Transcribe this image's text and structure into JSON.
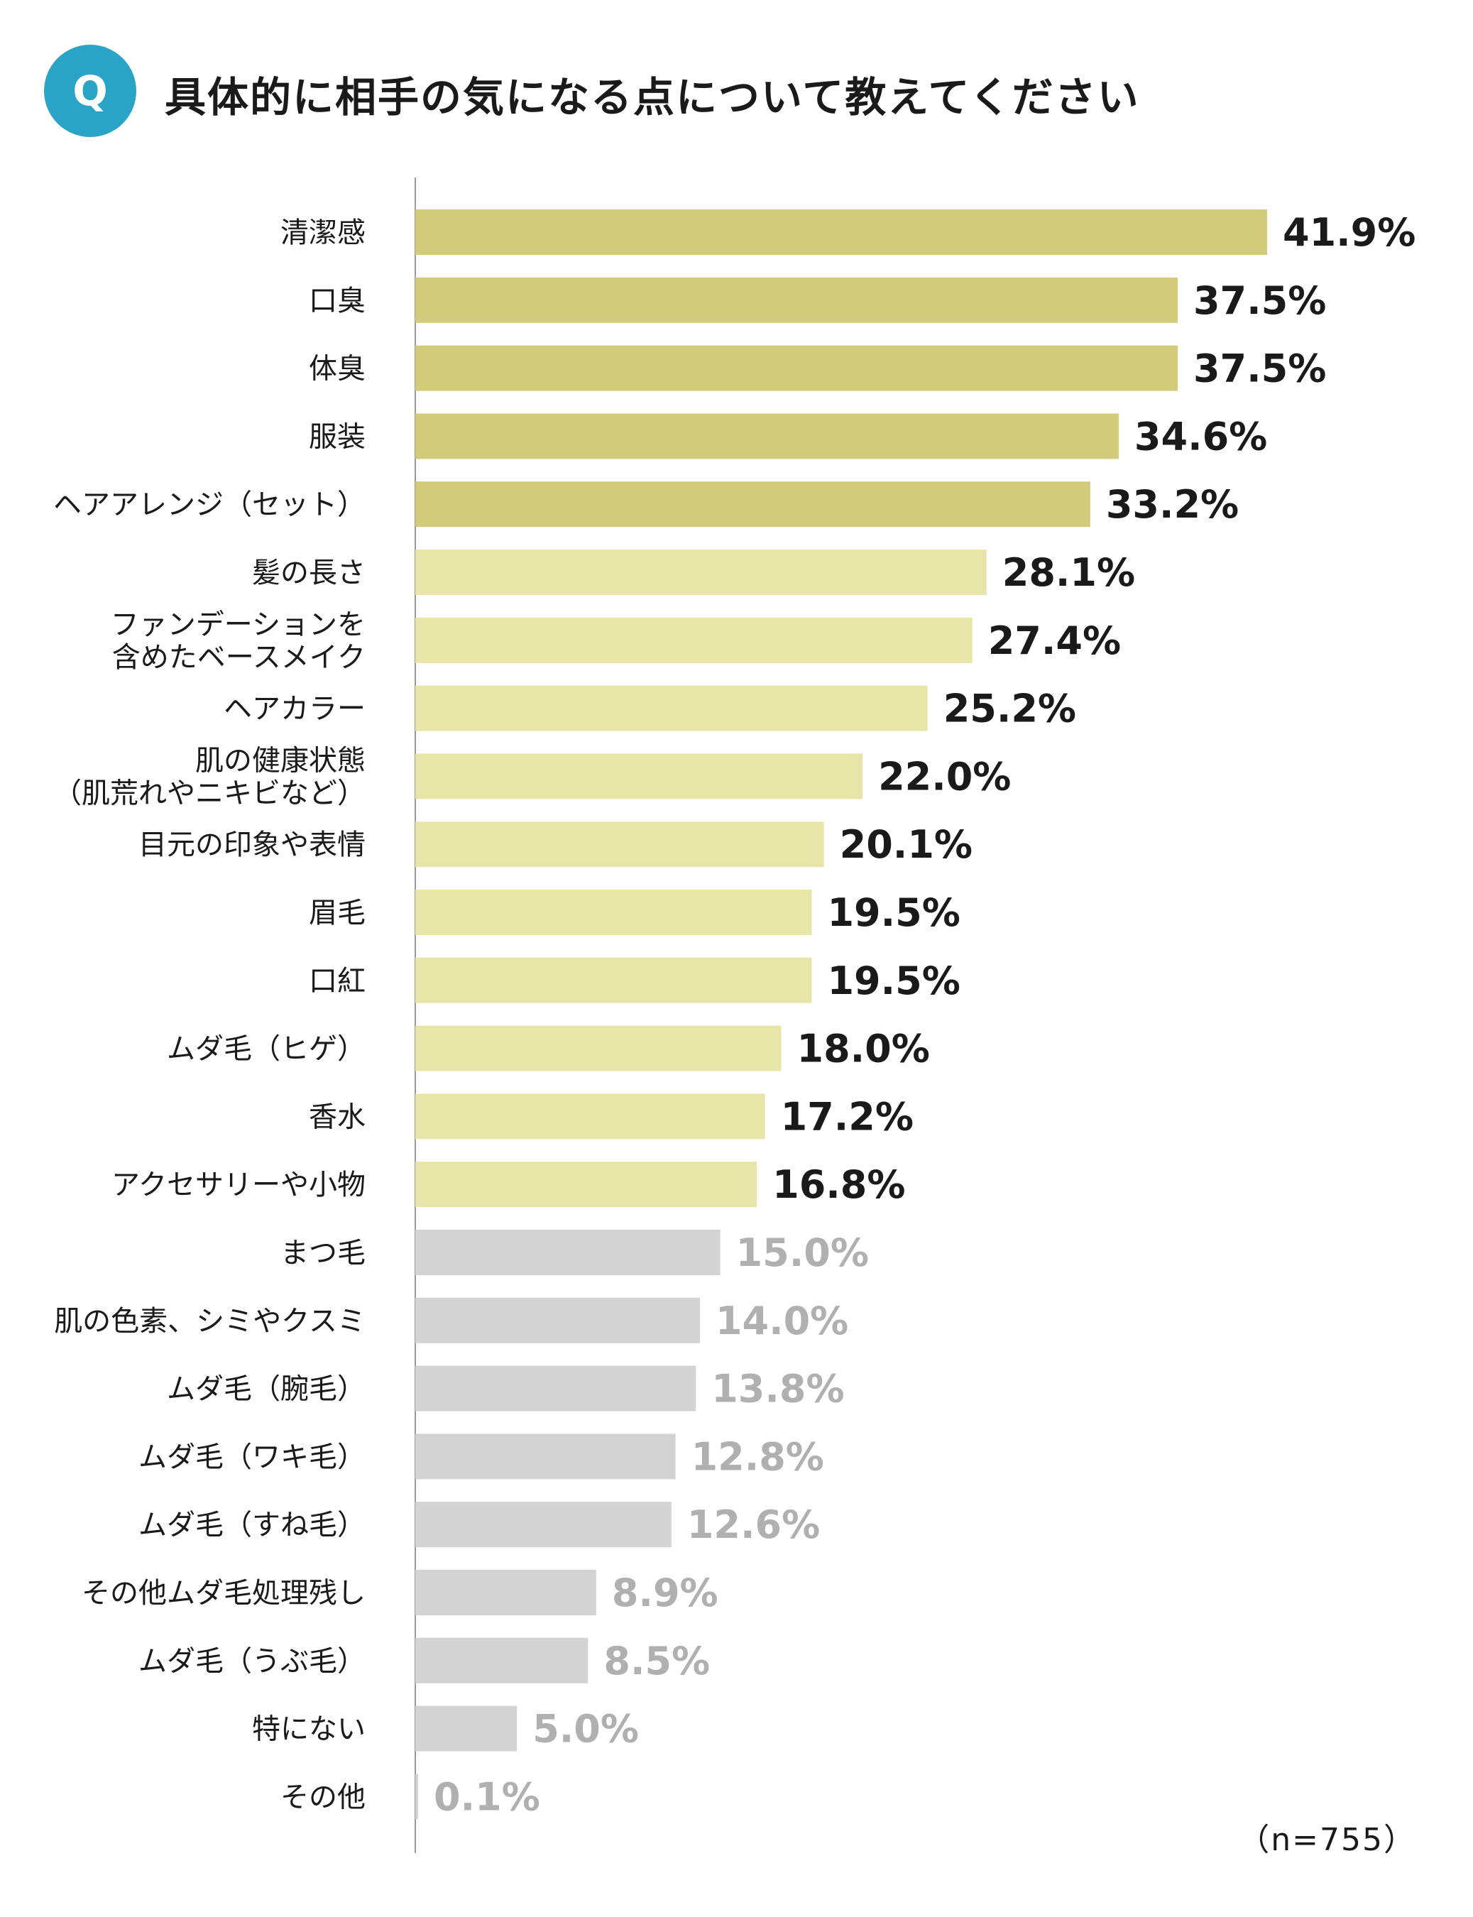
{
  "question": {
    "badge": "Q",
    "title": "具体的に相手の気になる点について教えてください"
  },
  "sample_note": "（n=755）",
  "colors": {
    "badge": "#2aa4c6",
    "top_tier": "#d1cb7a",
    "mid_tier": "#e8e5a9",
    "low_tier": "#d3d3d3",
    "value_dark": "#1a1a1a",
    "value_light": "#b0b0b0"
  },
  "chart_data": {
    "type": "bar",
    "orientation": "horizontal",
    "unit": "%",
    "categories": [
      [
        "清潔感"
      ],
      [
        "口臭"
      ],
      [
        "体臭"
      ],
      [
        "服装"
      ],
      [
        "ヘアアレンジ（セット）"
      ],
      [
        "髪の長さ"
      ],
      [
        "ファンデーションを",
        "含めたベースメイク"
      ],
      [
        "ヘアカラー"
      ],
      [
        "肌の健康状態",
        "（肌荒れやニキビなど）"
      ],
      [
        "目元の印象や表情"
      ],
      [
        "眉毛"
      ],
      [
        "口紅"
      ],
      [
        "ムダ毛（ヒゲ）"
      ],
      [
        "香水"
      ],
      [
        "アクセサリーや小物"
      ],
      [
        "まつ毛"
      ],
      [
        "肌の色素、シミやクスミ"
      ],
      [
        "ムダ毛（腕毛）"
      ],
      [
        "ムダ毛（ワキ毛）"
      ],
      [
        "ムダ毛（すね毛）"
      ],
      [
        "その他ムダ毛処理残し"
      ],
      [
        "ムダ毛（うぶ毛）"
      ],
      [
        "特にない"
      ],
      [
        "その他"
      ]
    ],
    "values": [
      41.9,
      37.5,
      37.5,
      34.6,
      33.2,
      28.1,
      27.4,
      25.2,
      22.0,
      20.1,
      19.5,
      19.5,
      18.0,
      17.2,
      16.8,
      15.0,
      14.0,
      13.8,
      12.8,
      12.6,
      8.9,
      8.5,
      5.0,
      0.1
    ],
    "value_labels": [
      "41.9%",
      "37.5%",
      "37.5%",
      "34.6%",
      "33.2%",
      "28.1%",
      "27.4%",
      "25.2%",
      "22.0%",
      "20.1%",
      "19.5%",
      "19.5%",
      "18.0%",
      "17.2%",
      "16.8%",
      "15.0%",
      "14.0%",
      "13.8%",
      "12.8%",
      "12.6%",
      "8.9%",
      "8.5%",
      "5.0%",
      "0.1%"
    ],
    "tiers": [
      "top",
      "top",
      "top",
      "top",
      "top",
      "mid",
      "mid",
      "mid",
      "mid",
      "mid",
      "mid",
      "mid",
      "mid",
      "mid",
      "mid",
      "low",
      "low",
      "low",
      "low",
      "low",
      "low",
      "low",
      "low",
      "low"
    ],
    "xlim": [
      0,
      41.9
    ]
  }
}
